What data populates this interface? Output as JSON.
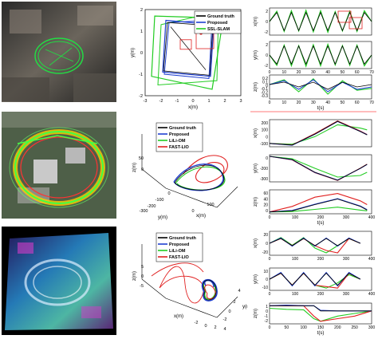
{
  "colors": {
    "ground_truth": "#000000",
    "proposed": "#1f3fd0",
    "lili_om": "#22cc22",
    "fast_lio": "#e02020",
    "ssl_slam": "#22cc22",
    "divider": "#ff4d4d"
  },
  "rows": [
    {
      "traj": {
        "kind": "2d",
        "xlabel": "x(m)",
        "ylabel": "y(m)",
        "xticks": [
          "-3",
          "-2",
          "-1",
          "0",
          "1",
          "2",
          "3"
        ],
        "yticks": [
          "2",
          "1",
          "0",
          "-1",
          "-2"
        ],
        "legend": [
          "Ground truth",
          "Proposed",
          "SSL-SLAM"
        ]
      },
      "axes": [
        {
          "ylabel": "x(m)",
          "yticks": [
            "2",
            "0",
            "-2"
          ],
          "xticks": []
        },
        {
          "ylabel": "y(m)",
          "yticks": [
            "2",
            "0",
            "-2"
          ],
          "xticks": [
            "0",
            "10",
            "20",
            "30",
            "40",
            "50",
            "60",
            "70"
          ]
        },
        {
          "ylabel": "z(m)",
          "yticks": [
            "0.2",
            "0.1",
            "0",
            "-0.1",
            "-0.2",
            "-0.3"
          ],
          "xticks": [
            "0",
            "10",
            "20",
            "30",
            "40",
            "50",
            "60",
            "70"
          ],
          "xlabel": "t(s)"
        }
      ]
    },
    {
      "traj": {
        "kind": "3d",
        "xlabel": "x(m)",
        "ylabel": "y(m)",
        "zlabel": "z(m)",
        "zticks": [
          "50",
          "0"
        ],
        "yticks": [
          "0",
          "-100",
          "-200",
          "-300"
        ],
        "xticks": [
          "0",
          "100"
        ],
        "legend": [
          "Ground truth",
          "Proposed",
          "LiLi-OM",
          "FAST-LIO"
        ]
      },
      "axes": [
        {
          "ylabel": "x(m)",
          "yticks": [
            "200",
            "100",
            "0",
            "-100"
          ],
          "xticks": []
        },
        {
          "ylabel": "y(m)",
          "yticks": [
            "0",
            "-200",
            "-300"
          ],
          "xticks": []
        },
        {
          "ylabel": "z(m)",
          "yticks": [
            "60",
            "40",
            "20",
            "0"
          ],
          "xticks": [
            "0",
            "100",
            "200",
            "300",
            "400"
          ],
          "xlabel": "t(s)"
        }
      ]
    },
    {
      "traj": {
        "kind": "3d",
        "xlabel": "x(m)",
        "ylabel": "y(m)",
        "zlabel": "z(m)",
        "zticks": [
          "5",
          "0",
          "-5"
        ],
        "yticks": [
          "4",
          "2",
          "0",
          "-2"
        ],
        "xticks": [
          "-2",
          "0",
          "2",
          "4"
        ],
        "legend": [
          "Ground truth",
          "Proposed",
          "LiLi-OM",
          "FAST-LIO"
        ]
      },
      "axes": [
        {
          "ylabel": "x(m)",
          "yticks": [
            "20",
            "0",
            "-20"
          ],
          "xticks": [
            "0",
            "100",
            "200",
            "300",
            "400"
          ]
        },
        {
          "ylabel": "y(m)",
          "yticks": [
            "10",
            "0",
            "-10"
          ],
          "xticks": [
            "0",
            "100",
            "200",
            "300",
            "400"
          ]
        },
        {
          "ylabel": "z(m)",
          "yticks": [
            "1",
            "0",
            "-1",
            "-2"
          ],
          "xticks": [
            "0",
            "50",
            "100",
            "150",
            "200",
            "250",
            "300"
          ],
          "xlabel": "t(s)"
        }
      ]
    }
  ],
  "chart_data": [
    {
      "type": "line",
      "title": "",
      "xlabel": "x(m)",
      "ylabel": "y(m)",
      "xlim": [
        -3,
        3
      ],
      "ylim": [
        -2,
        2
      ],
      "series": [
        {
          "name": "Ground truth",
          "x": [
            -1.5,
            1.2,
            1.0,
            -1.8,
            -1.5
          ],
          "y": [
            1.4,
            1.2,
            -1.0,
            -0.8,
            1.4
          ]
        },
        {
          "name": "Proposed",
          "x": [
            -1.6,
            1.3,
            1.1,
            -1.9,
            -1.6
          ],
          "y": [
            1.5,
            1.3,
            -1.1,
            -0.9,
            1.5
          ]
        },
        {
          "name": "SSL-SLAM",
          "x": [
            -2.2,
            1.8,
            1.3,
            -2.5,
            -2.2
          ],
          "y": [
            1.8,
            1.5,
            -1.6,
            -1.2,
            1.8
          ]
        }
      ]
    },
    {
      "type": "line",
      "title": "",
      "xlabel": "t(s)",
      "ylabel": "x(m)",
      "xlim": [
        0,
        70
      ],
      "ylim": [
        -3,
        3
      ],
      "series": [
        {
          "name": "Ground truth",
          "x": [
            0,
            5,
            10,
            15,
            20,
            25,
            30,
            35,
            40,
            45,
            50,
            55,
            60,
            65,
            70
          ],
          "y": [
            0,
            2,
            -2,
            2,
            -2,
            2,
            -2,
            2,
            -2,
            2,
            -2,
            2,
            -2,
            2,
            0
          ]
        },
        {
          "name": "SSL-SLAM",
          "x": [
            0,
            5,
            10,
            15,
            20,
            25,
            30,
            35,
            40,
            45,
            50,
            55,
            60,
            65,
            70
          ],
          "y": [
            0,
            2.3,
            -2.2,
            2.4,
            -2.1,
            2.5,
            -2.3,
            2.4,
            -2.4,
            2.2,
            -2.1,
            2.3,
            -2.2,
            2.4,
            0
          ]
        }
      ]
    },
    {
      "type": "line",
      "title": "",
      "xlabel": "t(s)",
      "ylabel": "y(m)",
      "xlim": [
        0,
        70
      ],
      "ylim": [
        -3,
        3
      ],
      "series": [
        {
          "name": "Ground truth",
          "x": [
            0,
            5,
            10,
            15,
            20,
            25,
            30,
            35,
            40,
            45,
            50,
            55,
            60,
            65,
            70
          ],
          "y": [
            0,
            -2,
            2,
            -2,
            2,
            -2,
            2,
            -2,
            2,
            -2,
            2,
            -2,
            2,
            -2,
            0
          ]
        },
        {
          "name": "SSL-SLAM",
          "x": [
            0,
            5,
            10,
            15,
            20,
            25,
            30,
            35,
            40,
            45,
            50,
            55,
            60,
            65,
            70
          ],
          "y": [
            0,
            -2.3,
            2.2,
            -2.4,
            2.1,
            -2.5,
            2.3,
            -2.4,
            2.4,
            -2.2,
            2.1,
            -2.3,
            2.2,
            -2.4,
            0
          ]
        }
      ]
    },
    {
      "type": "line",
      "title": "",
      "xlabel": "t(s)",
      "ylabel": "z(m)",
      "xlim": [
        0,
        70
      ],
      "ylim": [
        -0.3,
        0.2
      ],
      "series": [
        {
          "name": "Ground truth",
          "x": [
            0,
            10,
            20,
            30,
            40,
            50,
            60,
            70
          ],
          "y": [
            0,
            0.05,
            -0.05,
            0.05,
            -0.1,
            0.05,
            -0.05,
            0
          ]
        },
        {
          "name": "Proposed",
          "x": [
            0,
            10,
            20,
            30,
            40,
            50,
            60,
            70
          ],
          "y": [
            0,
            0.08,
            -0.1,
            0.1,
            -0.15,
            0.05,
            -0.1,
            -0.05
          ]
        },
        {
          "name": "SSL-SLAM",
          "x": [
            0,
            10,
            20,
            30,
            40,
            50,
            60,
            70
          ],
          "y": [
            0,
            0.1,
            -0.15,
            0.12,
            -0.2,
            0.08,
            -0.12,
            -0.08
          ]
        }
      ]
    },
    {
      "type": "line",
      "title": "",
      "xlabel": "t(s)",
      "ylabel": "x(m)",
      "xlim": [
        0,
        450
      ],
      "ylim": [
        -100,
        220
      ],
      "series": [
        {
          "name": "Ground truth",
          "x": [
            0,
            100,
            200,
            300,
            400,
            430
          ],
          "y": [
            -60,
            -80,
            50,
            200,
            80,
            40
          ]
        },
        {
          "name": "Proposed",
          "x": [
            0,
            100,
            200,
            300,
            400,
            430
          ],
          "y": [
            -60,
            -82,
            48,
            198,
            82,
            42
          ]
        },
        {
          "name": "LiLi-OM",
          "x": [
            0,
            100,
            200,
            300,
            400,
            430
          ],
          "y": [
            -60,
            -70,
            20,
            160,
            120,
            100
          ]
        },
        {
          "name": "FAST-LIO",
          "x": [
            0,
            100,
            200,
            300,
            400,
            430
          ],
          "y": [
            -60,
            -78,
            55,
            205,
            85,
            45
          ]
        }
      ]
    },
    {
      "type": "line",
      "title": "",
      "xlabel": "t(s)",
      "ylabel": "y(m)",
      "xlim": [
        0,
        450
      ],
      "ylim": [
        -320,
        20
      ],
      "series": [
        {
          "name": "Ground truth",
          "x": [
            0,
            100,
            200,
            300,
            400,
            430
          ],
          "y": [
            0,
            -40,
            -200,
            -300,
            -150,
            -100
          ]
        },
        {
          "name": "Proposed",
          "x": [
            0,
            100,
            200,
            300,
            400,
            430
          ],
          "y": [
            0,
            -42,
            -202,
            -298,
            -152,
            -102
          ]
        },
        {
          "name": "LiLi-OM",
          "x": [
            0,
            100,
            200,
            300,
            400,
            430
          ],
          "y": [
            0,
            -30,
            -150,
            -260,
            -240,
            -200
          ]
        },
        {
          "name": "FAST-LIO",
          "x": [
            0,
            100,
            200,
            300,
            400,
            430
          ],
          "y": [
            0,
            -45,
            -205,
            -302,
            -148,
            -98
          ]
        }
      ]
    },
    {
      "type": "line",
      "title": "",
      "xlabel": "t(s)",
      "ylabel": "z(m)",
      "xlim": [
        0,
        450
      ],
      "ylim": [
        0,
        65
      ],
      "series": [
        {
          "name": "Ground truth",
          "x": [
            0,
            100,
            200,
            300,
            400,
            430
          ],
          "y": [
            5,
            8,
            25,
            40,
            20,
            10
          ]
        },
        {
          "name": "Proposed",
          "x": [
            0,
            100,
            200,
            300,
            400,
            430
          ],
          "y": [
            5,
            9,
            26,
            41,
            21,
            11
          ]
        },
        {
          "name": "LiLi-OM",
          "x": [
            0,
            100,
            200,
            300,
            400,
            430
          ],
          "y": [
            5,
            6,
            12,
            18,
            10,
            8
          ]
        },
        {
          "name": "FAST-LIO",
          "x": [
            0,
            100,
            200,
            300,
            400,
            430
          ],
          "y": [
            5,
            20,
            45,
            55,
            35,
            25
          ]
        }
      ]
    },
    {
      "type": "line",
      "title": "",
      "xlabel": "t(s)",
      "ylabel": "x(m)",
      "xlim": [
        0,
        450
      ],
      "ylim": [
        -25,
        25
      ],
      "series": [
        {
          "name": "Ground truth",
          "x": [
            0,
            50,
            100,
            150,
            200,
            250,
            300,
            350,
            400
          ],
          "y": [
            0,
            10,
            -5,
            10,
            -5,
            10,
            -5,
            10,
            0
          ]
        },
        {
          "name": "Proposed",
          "x": [
            0,
            50,
            100,
            150,
            200,
            250,
            300,
            350,
            400
          ],
          "y": [
            0,
            11,
            -6,
            11,
            -6,
            11,
            -6,
            11,
            0
          ]
        },
        {
          "name": "LiLi-OM",
          "x": [
            0,
            50,
            100,
            150,
            200,
            250,
            300,
            350,
            400
          ],
          "y": [
            0,
            12,
            -4,
            12,
            -10,
            -20,
            -5,
            10,
            0
          ]
        },
        {
          "name": "FAST-LIO",
          "x": [
            0,
            50,
            100,
            150,
            200,
            250,
            300,
            350,
            400
          ],
          "y": [
            0,
            10,
            -5,
            10,
            -5,
            -15,
            -20,
            10,
            0
          ]
        }
      ]
    },
    {
      "type": "line",
      "title": "",
      "xlabel": "t(s)",
      "ylabel": "y(m)",
      "xlim": [
        0,
        450
      ],
      "ylim": [
        -15,
        15
      ],
      "series": [
        {
          "name": "Ground truth",
          "x": [
            0,
            50,
            100,
            150,
            200,
            250,
            300,
            350,
            400
          ],
          "y": [
            0,
            8,
            -8,
            8,
            -8,
            8,
            -8,
            8,
            0
          ]
        },
        {
          "name": "Proposed",
          "x": [
            0,
            50,
            100,
            150,
            200,
            250,
            300,
            350,
            400
          ],
          "y": [
            0,
            9,
            -9,
            9,
            -9,
            9,
            -9,
            9,
            0
          ]
        },
        {
          "name": "LiLi-OM",
          "x": [
            0,
            50,
            100,
            150,
            200,
            250,
            300,
            350,
            400
          ],
          "y": [
            0,
            8,
            -8,
            8,
            -8,
            -12,
            -5,
            6,
            0
          ]
        },
        {
          "name": "FAST-LIO",
          "x": [
            0,
            50,
            100,
            150,
            200,
            250,
            300,
            350,
            400
          ],
          "y": [
            0,
            8,
            -8,
            8,
            -8,
            -10,
            -12,
            8,
            0
          ]
        }
      ]
    },
    {
      "type": "line",
      "title": "",
      "xlabel": "t(s)",
      "ylabel": "z(m)",
      "xlim": [
        0,
        300
      ],
      "ylim": [
        -2.5,
        1.5
      ],
      "series": [
        {
          "name": "Ground truth",
          "x": [
            0,
            50,
            100,
            130,
            150,
            200,
            250,
            300
          ],
          "y": [
            1,
            1,
            1,
            1,
            0,
            0,
            0,
            0
          ]
        },
        {
          "name": "Proposed",
          "x": [
            0,
            50,
            100,
            130,
            150,
            200,
            250,
            300
          ],
          "y": [
            1,
            1.1,
            1,
            1,
            0.1,
            0,
            0,
            0
          ]
        },
        {
          "name": "LiLi-OM",
          "x": [
            0,
            50,
            100,
            130,
            150,
            200,
            250,
            300
          ],
          "y": [
            0.5,
            0.3,
            0.2,
            -1.5,
            -2,
            -1,
            -0.5,
            0
          ]
        },
        {
          "name": "FAST-LIO",
          "x": [
            0,
            50,
            100,
            130,
            150,
            200,
            250,
            300
          ],
          "y": [
            1,
            1,
            1,
            -1,
            -2,
            -1.5,
            -1,
            0
          ]
        }
      ]
    }
  ]
}
